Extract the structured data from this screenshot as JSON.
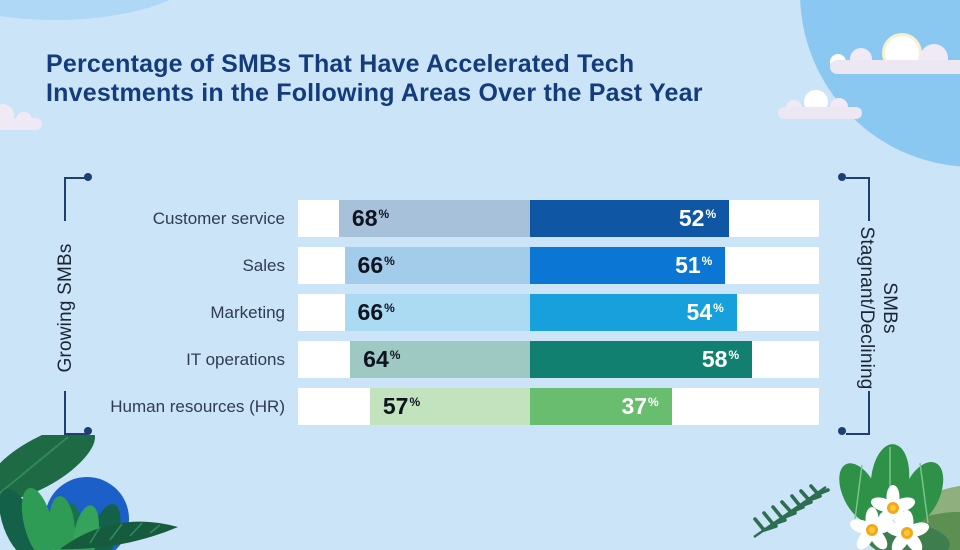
{
  "title": {
    "line1": "Percentage of SMBs That Have Accelerated Tech",
    "line2": "Investments in the Following Areas Over the Past Year"
  },
  "axis_groups": {
    "left": {
      "label": "Growing SMBs"
    },
    "right": {
      "label_line1": "Stagnant/Declining",
      "label_line2": "SMBs"
    }
  },
  "unit": "%",
  "rows": [
    {
      "label": "Customer service",
      "growing": 68,
      "stagnant": 52,
      "growing_color": "#A7C1DB",
      "stagnant_color": "#0F57A5"
    },
    {
      "label": "Sales",
      "growing": 66,
      "stagnant": 51,
      "growing_color": "#A3CBEA",
      "stagnant_color": "#0B76D4"
    },
    {
      "label": "Marketing",
      "growing": 66,
      "stagnant": 54,
      "growing_color": "#ABDBF3",
      "stagnant_color": "#17A0DB"
    },
    {
      "label": "IT operations",
      "growing": 64,
      "stagnant": 58,
      "growing_color": "#9EC8C2",
      "stagnant_color": "#128071"
    },
    {
      "label": "Human resources (HR)",
      "growing": 57,
      "stagnant": 37,
      "growing_color": "#C3E3BF",
      "stagnant_color": "#69BD6F"
    }
  ],
  "colors": {
    "background": "#CBE4F8",
    "sky_circle": "#8AC8F2",
    "title_text": "#143C7C",
    "bracket": "#1D3F73",
    "track": "#FFFFFF",
    "value_dark": "#0E1320",
    "value_light": "#FFFFFF",
    "category_text": "#2F3B52"
  },
  "chart_data": {
    "type": "bar",
    "subtype": "bidirectional-horizontal",
    "title": "Percentage of SMBs That Have Accelerated Tech Investments in the Following Areas Over the Past Year",
    "categories": [
      "Customer service",
      "Sales",
      "Marketing",
      "IT operations",
      "Human resources (HR)"
    ],
    "series": [
      {
        "name": "Growing SMBs",
        "values": [
          68,
          66,
          66,
          64,
          57
        ]
      },
      {
        "name": "Stagnant/Declining SMBs",
        "values": [
          52,
          51,
          54,
          58,
          37
        ]
      }
    ],
    "unit": "%",
    "value_labels": "inside-bars",
    "legend_position": "rotated-side-labels",
    "grid": false
  }
}
